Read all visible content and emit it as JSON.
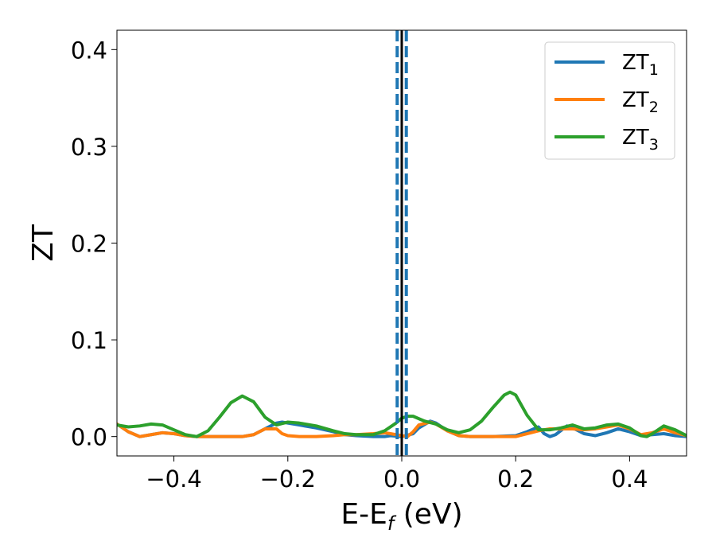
{
  "chart_data": {
    "type": "line",
    "title": "",
    "xlabel": {
      "main": "E-E",
      "sub": "f",
      "tail": " (eV)"
    },
    "ylabel": "ZT",
    "xlim": [
      -0.5,
      0.5
    ],
    "ylim": [
      -0.02,
      0.42
    ],
    "x_ticks": [
      -0.4,
      -0.2,
      0.0,
      0.2,
      0.4
    ],
    "x_tick_labels": [
      "−0.4",
      "−0.2",
      "0.0",
      "0.2",
      "0.4"
    ],
    "y_ticks": [
      0.0,
      0.1,
      0.2,
      0.3,
      0.4
    ],
    "y_tick_labels": [
      "0.0",
      "0.1",
      "0.2",
      "0.3",
      "0.4"
    ],
    "grid": false,
    "legend_position": "top-right",
    "vertical_lines": [
      {
        "x": -0.008,
        "style": "dashed",
        "color": "#1f77b4"
      },
      {
        "x": 0.008,
        "style": "dashed",
        "color": "#1f77b4"
      },
      {
        "x": 0.0,
        "style": "solid",
        "color": "#000000"
      }
    ],
    "series": [
      {
        "name": "ZT1",
        "legend_main": "ZT",
        "legend_sub": "1",
        "color": "#1f77b4",
        "points": [
          [
            -0.5,
            0.013
          ],
          [
            -0.48,
            0.005
          ],
          [
            -0.46,
            0.0
          ],
          [
            -0.44,
            0.002
          ],
          [
            -0.42,
            0.004
          ],
          [
            -0.4,
            0.003
          ],
          [
            -0.38,
            0.001
          ],
          [
            -0.36,
            0.0
          ],
          [
            -0.34,
            0.0
          ],
          [
            -0.3,
            0.0
          ],
          [
            -0.28,
            0.0
          ],
          [
            -0.26,
            0.002
          ],
          [
            -0.24,
            0.008
          ],
          [
            -0.22,
            0.014
          ],
          [
            -0.21,
            0.015
          ],
          [
            -0.2,
            0.014
          ],
          [
            -0.18,
            0.012
          ],
          [
            -0.15,
            0.009
          ],
          [
            -0.12,
            0.005
          ],
          [
            -0.1,
            0.002
          ],
          [
            -0.08,
            0.001
          ],
          [
            -0.05,
            0.0
          ],
          [
            -0.03,
            0.0
          ],
          [
            -0.02,
            0.001
          ],
          [
            0.0,
            0.0
          ],
          [
            0.02,
            0.003
          ],
          [
            0.03,
            0.009
          ],
          [
            0.05,
            0.016
          ],
          [
            0.06,
            0.014
          ],
          [
            0.08,
            0.006
          ],
          [
            0.1,
            0.001
          ],
          [
            0.12,
            0.0
          ],
          [
            0.16,
            0.0
          ],
          [
            0.2,
            0.001
          ],
          [
            0.22,
            0.005
          ],
          [
            0.24,
            0.01
          ],
          [
            0.25,
            0.003
          ],
          [
            0.26,
            0.0
          ],
          [
            0.27,
            0.002
          ],
          [
            0.29,
            0.011
          ],
          [
            0.3,
            0.009
          ],
          [
            0.32,
            0.003
          ],
          [
            0.34,
            0.001
          ],
          [
            0.36,
            0.004
          ],
          [
            0.38,
            0.008
          ],
          [
            0.4,
            0.005
          ],
          [
            0.42,
            0.001
          ],
          [
            0.44,
            0.002
          ],
          [
            0.46,
            0.003
          ],
          [
            0.48,
            0.001
          ],
          [
            0.5,
            0.0
          ]
        ]
      },
      {
        "name": "ZT2",
        "legend_main": "ZT",
        "legend_sub": "2",
        "color": "#ff7f0e",
        "points": [
          [
            -0.5,
            0.013
          ],
          [
            -0.48,
            0.005
          ],
          [
            -0.46,
            0.0
          ],
          [
            -0.44,
            0.002
          ],
          [
            -0.42,
            0.004
          ],
          [
            -0.4,
            0.003
          ],
          [
            -0.38,
            0.001
          ],
          [
            -0.36,
            0.0
          ],
          [
            -0.34,
            0.0
          ],
          [
            -0.3,
            0.0
          ],
          [
            -0.28,
            0.0
          ],
          [
            -0.26,
            0.002
          ],
          [
            -0.24,
            0.008
          ],
          [
            -0.22,
            0.008
          ],
          [
            -0.21,
            0.003
          ],
          [
            -0.2,
            0.001
          ],
          [
            -0.18,
            0.0
          ],
          [
            -0.15,
            0.0
          ],
          [
            -0.12,
            0.001
          ],
          [
            -0.1,
            0.002
          ],
          [
            -0.08,
            0.002
          ],
          [
            -0.05,
            0.003
          ],
          [
            -0.03,
            0.004
          ],
          [
            -0.02,
            0.003
          ],
          [
            0.0,
            0.001
          ],
          [
            0.01,
            0.0
          ],
          [
            0.02,
            0.005
          ],
          [
            0.03,
            0.012
          ],
          [
            0.05,
            0.015
          ],
          [
            0.06,
            0.013
          ],
          [
            0.08,
            0.006
          ],
          [
            0.1,
            0.001
          ],
          [
            0.12,
            0.0
          ],
          [
            0.16,
            0.0
          ],
          [
            0.2,
            0.0
          ],
          [
            0.22,
            0.003
          ],
          [
            0.24,
            0.006
          ],
          [
            0.26,
            0.008
          ],
          [
            0.28,
            0.008
          ],
          [
            0.3,
            0.008
          ],
          [
            0.32,
            0.007
          ],
          [
            0.34,
            0.008
          ],
          [
            0.36,
            0.01
          ],
          [
            0.38,
            0.012
          ],
          [
            0.4,
            0.008
          ],
          [
            0.42,
            0.002
          ],
          [
            0.44,
            0.004
          ],
          [
            0.46,
            0.008
          ],
          [
            0.48,
            0.004
          ],
          [
            0.5,
            0.001
          ]
        ]
      },
      {
        "name": "ZT3",
        "legend_main": "ZT",
        "legend_sub": "3",
        "color": "#2ca02c",
        "points": [
          [
            -0.5,
            0.012
          ],
          [
            -0.48,
            0.01
          ],
          [
            -0.46,
            0.011
          ],
          [
            -0.44,
            0.013
          ],
          [
            -0.42,
            0.012
          ],
          [
            -0.4,
            0.007
          ],
          [
            -0.38,
            0.002
          ],
          [
            -0.36,
            0.0
          ],
          [
            -0.34,
            0.006
          ],
          [
            -0.32,
            0.02
          ],
          [
            -0.3,
            0.035
          ],
          [
            -0.28,
            0.042
          ],
          [
            -0.26,
            0.036
          ],
          [
            -0.24,
            0.02
          ],
          [
            -0.22,
            0.012
          ],
          [
            -0.2,
            0.015
          ],
          [
            -0.18,
            0.014
          ],
          [
            -0.15,
            0.011
          ],
          [
            -0.12,
            0.006
          ],
          [
            -0.1,
            0.003
          ],
          [
            -0.08,
            0.002
          ],
          [
            -0.05,
            0.002
          ],
          [
            -0.03,
            0.006
          ],
          [
            -0.01,
            0.014
          ],
          [
            0.0,
            0.019
          ],
          [
            0.01,
            0.021
          ],
          [
            0.02,
            0.021
          ],
          [
            0.04,
            0.016
          ],
          [
            0.06,
            0.013
          ],
          [
            0.08,
            0.007
          ],
          [
            0.1,
            0.004
          ],
          [
            0.12,
            0.007
          ],
          [
            0.14,
            0.016
          ],
          [
            0.16,
            0.03
          ],
          [
            0.18,
            0.043
          ],
          [
            0.19,
            0.046
          ],
          [
            0.2,
            0.043
          ],
          [
            0.22,
            0.022
          ],
          [
            0.24,
            0.007
          ],
          [
            0.26,
            0.007
          ],
          [
            0.28,
            0.009
          ],
          [
            0.3,
            0.012
          ],
          [
            0.32,
            0.008
          ],
          [
            0.34,
            0.009
          ],
          [
            0.36,
            0.012
          ],
          [
            0.38,
            0.013
          ],
          [
            0.4,
            0.009
          ],
          [
            0.42,
            0.001
          ],
          [
            0.43,
            0.0
          ],
          [
            0.44,
            0.003
          ],
          [
            0.46,
            0.011
          ],
          [
            0.48,
            0.007
          ],
          [
            0.5,
            0.001
          ]
        ]
      }
    ]
  }
}
